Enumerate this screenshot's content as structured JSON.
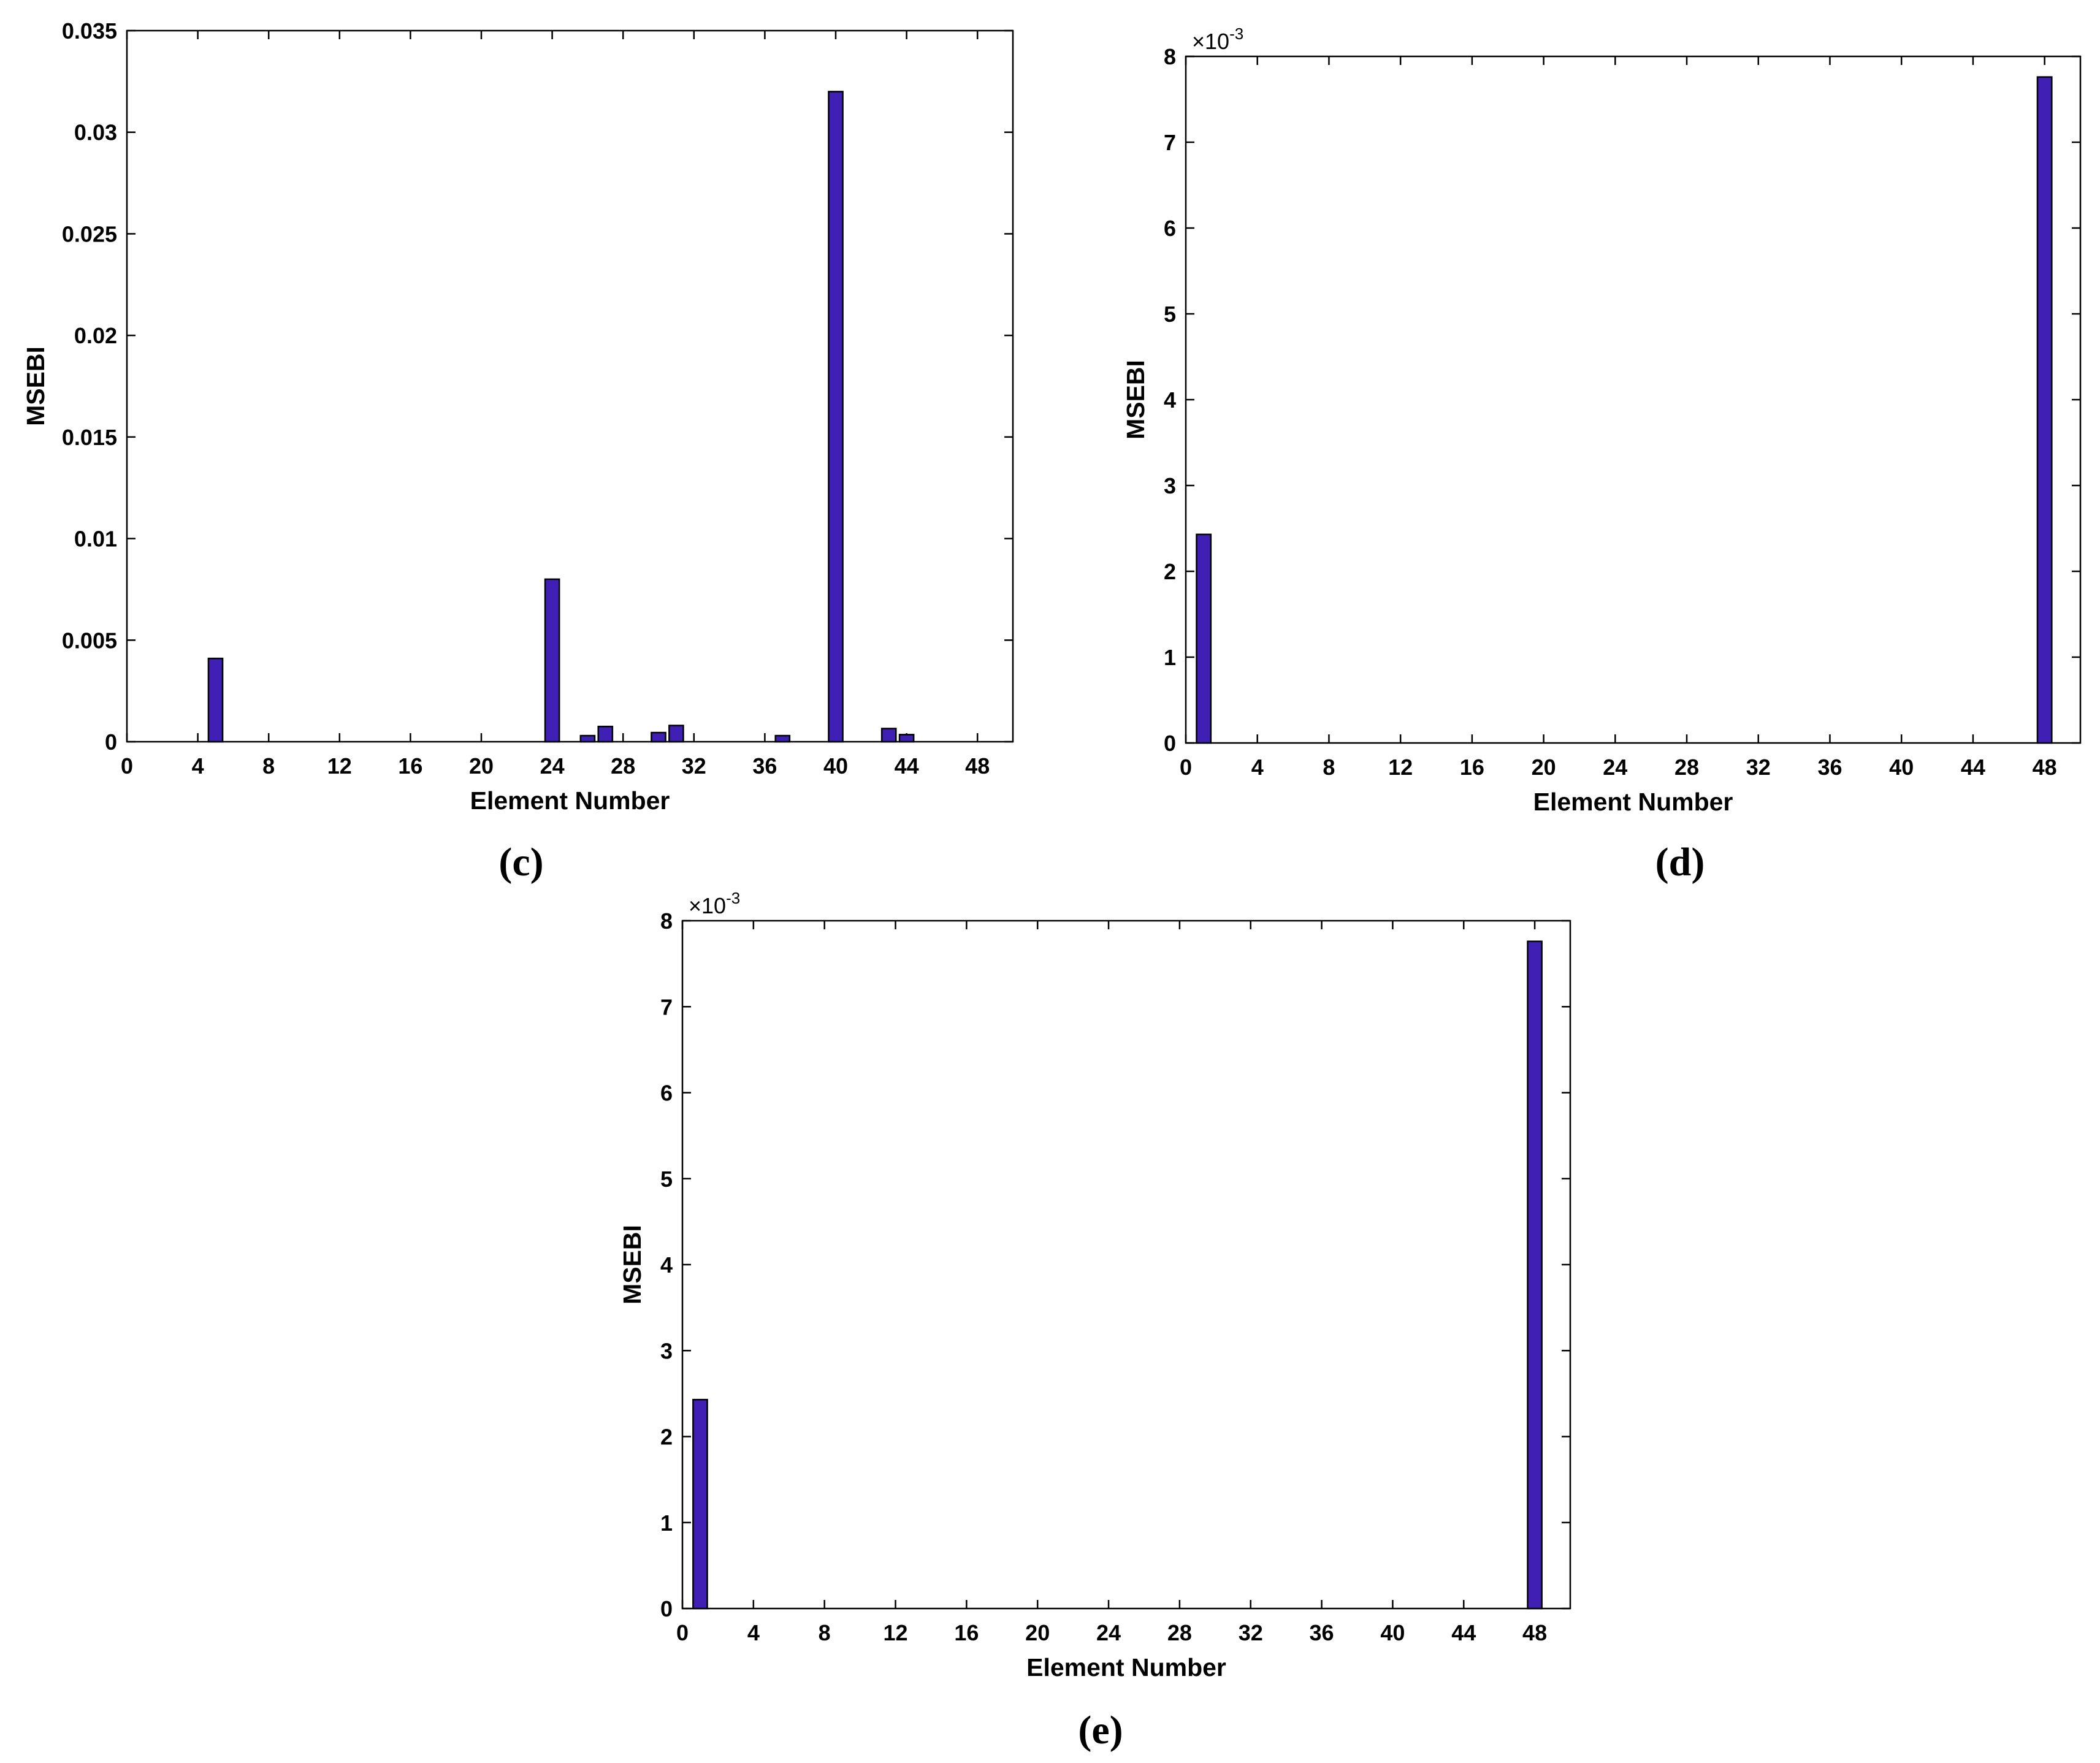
{
  "chart_data": [
    {
      "id": "c",
      "type": "bar",
      "panel_label": "(c)",
      "xlabel": "Element Number",
      "ylabel": "MSEBI",
      "xlim": [
        0,
        50
      ],
      "ylim": [
        0,
        0.035
      ],
      "x_ticks": [
        0,
        4,
        8,
        12,
        16,
        20,
        24,
        28,
        32,
        36,
        40,
        44,
        48
      ],
      "y_ticks": [
        0,
        0.005,
        0.01,
        0.015,
        0.02,
        0.025,
        0.03,
        0.035
      ],
      "y_tick_labels": [
        "0",
        "0.005",
        "0.01",
        "0.015",
        "0.02",
        "0.025",
        "0.03",
        "0.035"
      ],
      "exponent_label": "",
      "bar_color": "#3F1FB4",
      "x": [
        5,
        24,
        26,
        27,
        30,
        31,
        37,
        40,
        43,
        44
      ],
      "values": [
        0.0041,
        0.008,
        0.0003,
        0.00075,
        0.00045,
        0.0008,
        0.0003,
        0.032,
        0.00065,
        0.00035
      ]
    },
    {
      "id": "d",
      "type": "bar",
      "panel_label": "(d)",
      "xlabel": "Element Number",
      "ylabel": "MSEBI",
      "xlim": [
        0,
        50
      ],
      "ylim": [
        0,
        8
      ],
      "x_ticks": [
        0,
        4,
        8,
        12,
        16,
        20,
        24,
        28,
        32,
        36,
        40,
        44,
        48
      ],
      "y_ticks": [
        0,
        1,
        2,
        3,
        4,
        5,
        6,
        7,
        8
      ],
      "y_tick_labels": [
        "0",
        "1",
        "2",
        "3",
        "4",
        "5",
        "6",
        "7",
        "8"
      ],
      "exponent_label": "×10",
      "exponent_power": "-3",
      "bar_color": "#3F1FB4",
      "x": [
        1,
        48
      ],
      "values": [
        2.43,
        7.76
      ]
    },
    {
      "id": "e",
      "type": "bar",
      "panel_label": "(e)",
      "xlabel": "Element Number",
      "ylabel": "MSEBI",
      "xlim": [
        0,
        50
      ],
      "ylim": [
        0,
        8
      ],
      "x_ticks": [
        0,
        4,
        8,
        12,
        16,
        20,
        24,
        28,
        32,
        36,
        40,
        44,
        48
      ],
      "y_ticks": [
        0,
        1,
        2,
        3,
        4,
        5,
        6,
        7,
        8
      ],
      "y_tick_labels": [
        "0",
        "1",
        "2",
        "3",
        "4",
        "5",
        "6",
        "7",
        "8"
      ],
      "exponent_label": "×10",
      "exponent_power": "-3",
      "bar_color": "#3F1FB4",
      "x": [
        1,
        48
      ],
      "values": [
        2.43,
        7.76
      ]
    }
  ]
}
